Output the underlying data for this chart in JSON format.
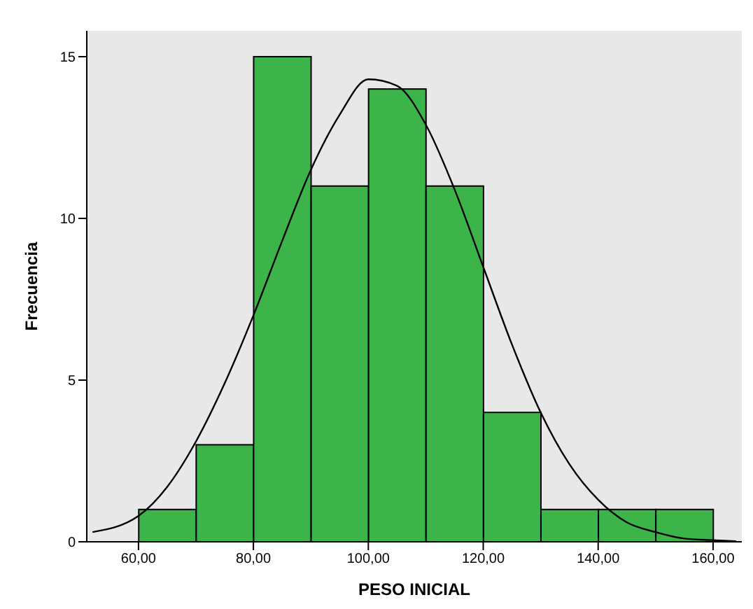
{
  "chart_data": {
    "type": "histogram",
    "xlabel": "PESO INICIAL",
    "ylabel": "Frecuencia",
    "bins": [
      60,
      70,
      80,
      90,
      100,
      110,
      120,
      130,
      140,
      150,
      160
    ],
    "values": [
      1,
      3,
      15,
      11,
      14,
      11,
      4,
      1,
      1,
      1
    ],
    "color": "#3cb44a",
    "series": [
      {
        "type": "line",
        "color": "#000000",
        "x": [
          52,
          60,
          65,
          70,
          75,
          80,
          85,
          90,
          95,
          100,
          105,
          110,
          115,
          120,
          125,
          130,
          135,
          140,
          145,
          150,
          155,
          160,
          164
        ],
        "values": [
          0.3,
          0.8,
          1.7,
          3.1,
          4.9,
          7.0,
          9.3,
          11.5,
          13.2,
          14.3,
          14.1,
          12.9,
          10.9,
          8.5,
          6.1,
          4.0,
          2.4,
          1.3,
          0.6,
          0.3,
          0.1,
          0.05,
          0.02
        ]
      }
    ],
    "xlim": [
      51,
      165
    ],
    "xticks": [
      {
        "value": 60,
        "label": "60,00"
      },
      {
        "value": 80,
        "label": "80,00"
      },
      {
        "value": 100,
        "label": "100,00"
      },
      {
        "value": 120,
        "label": "120,00"
      },
      {
        "value": 140,
        "label": "140,00"
      },
      {
        "value": 160,
        "label": "160,00"
      }
    ],
    "ylim": [
      0,
      15.8
    ],
    "yticks": [
      0,
      5,
      10,
      15
    ],
    "grid": false,
    "legend": false
  }
}
